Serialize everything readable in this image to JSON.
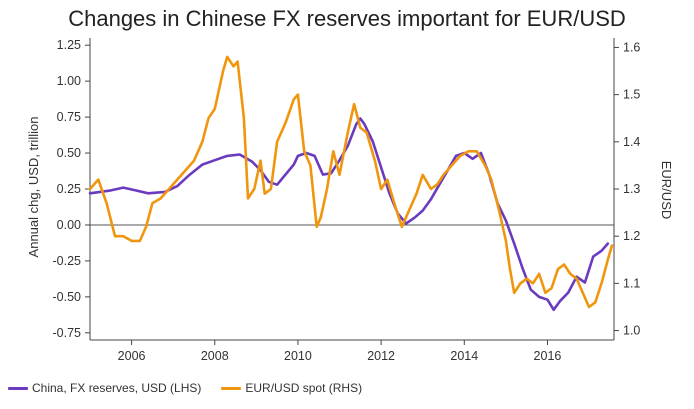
{
  "chart_data": {
    "type": "line",
    "title": "Changes in Chinese FX reserves important for EUR/USD",
    "ylabel_left": "Annual chg, USD, trillion",
    "ylabel_right": "EUR/USD",
    "xlim": [
      2005,
      2017.6
    ],
    "ylim_left": [
      -0.8,
      1.3
    ],
    "ylim_right": [
      0.98,
      1.62
    ],
    "x_ticks": [
      "2006",
      "2008",
      "2010",
      "2012",
      "2014",
      "2016"
    ],
    "y_ticks_left": [
      "1.25",
      "1.00",
      "0.75",
      "0.50",
      "0.25",
      "0.00",
      "-0.25",
      "-0.50",
      "-0.75"
    ],
    "y_ticks_right": [
      "1.6",
      "1.5",
      "1.4",
      "1.3",
      "1.2",
      "1.1",
      "1.0"
    ],
    "zero_line": 0,
    "series": [
      {
        "name": "China, FX reserves, USD (LHS)",
        "axis": "left",
        "color": "#6a3bbf",
        "points": [
          [
            2005.0,
            0.22
          ],
          [
            2005.5,
            0.24
          ],
          [
            2005.8,
            0.26
          ],
          [
            2006.1,
            0.24
          ],
          [
            2006.4,
            0.22
          ],
          [
            2006.8,
            0.23
          ],
          [
            2007.1,
            0.27
          ],
          [
            2007.4,
            0.35
          ],
          [
            2007.7,
            0.42
          ],
          [
            2008.0,
            0.45
          ],
          [
            2008.3,
            0.48
          ],
          [
            2008.6,
            0.49
          ],
          [
            2008.9,
            0.44
          ],
          [
            2009.1,
            0.38
          ],
          [
            2009.3,
            0.3
          ],
          [
            2009.5,
            0.28
          ],
          [
            2009.7,
            0.35
          ],
          [
            2009.9,
            0.42
          ],
          [
            2010.0,
            0.48
          ],
          [
            2010.2,
            0.5
          ],
          [
            2010.4,
            0.48
          ],
          [
            2010.6,
            0.35
          ],
          [
            2010.8,
            0.36
          ],
          [
            2011.0,
            0.45
          ],
          [
            2011.2,
            0.55
          ],
          [
            2011.4,
            0.7
          ],
          [
            2011.5,
            0.74
          ],
          [
            2011.6,
            0.7
          ],
          [
            2011.8,
            0.58
          ],
          [
            2012.0,
            0.4
          ],
          [
            2012.2,
            0.22
          ],
          [
            2012.4,
            0.08
          ],
          [
            2012.6,
            0.01
          ],
          [
            2012.8,
            0.05
          ],
          [
            2013.0,
            0.1
          ],
          [
            2013.2,
            0.18
          ],
          [
            2013.4,
            0.28
          ],
          [
            2013.6,
            0.38
          ],
          [
            2013.8,
            0.48
          ],
          [
            2014.0,
            0.5
          ],
          [
            2014.2,
            0.46
          ],
          [
            2014.4,
            0.5
          ],
          [
            2014.6,
            0.35
          ],
          [
            2014.8,
            0.15
          ],
          [
            2015.0,
            0.03
          ],
          [
            2015.2,
            -0.13
          ],
          [
            2015.4,
            -0.3
          ],
          [
            2015.6,
            -0.45
          ],
          [
            2015.8,
            -0.5
          ],
          [
            2016.0,
            -0.52
          ],
          [
            2016.15,
            -0.59
          ],
          [
            2016.3,
            -0.53
          ],
          [
            2016.5,
            -0.47
          ],
          [
            2016.7,
            -0.36
          ],
          [
            2016.9,
            -0.4
          ],
          [
            2017.1,
            -0.22
          ],
          [
            2017.3,
            -0.18
          ],
          [
            2017.45,
            -0.13
          ]
        ]
      },
      {
        "name": "EUR/USD spot (RHS)",
        "axis": "right",
        "color": "#f0960e",
        "points": [
          [
            2005.0,
            1.3
          ],
          [
            2005.2,
            1.32
          ],
          [
            2005.4,
            1.27
          ],
          [
            2005.6,
            1.2
          ],
          [
            2005.8,
            1.2
          ],
          [
            2006.0,
            1.19
          ],
          [
            2006.2,
            1.19
          ],
          [
            2006.35,
            1.22
          ],
          [
            2006.5,
            1.27
          ],
          [
            2006.7,
            1.28
          ],
          [
            2006.9,
            1.3
          ],
          [
            2007.1,
            1.32
          ],
          [
            2007.3,
            1.34
          ],
          [
            2007.5,
            1.36
          ],
          [
            2007.7,
            1.4
          ],
          [
            2007.85,
            1.45
          ],
          [
            2008.0,
            1.47
          ],
          [
            2008.2,
            1.55
          ],
          [
            2008.3,
            1.58
          ],
          [
            2008.45,
            1.56
          ],
          [
            2008.55,
            1.57
          ],
          [
            2008.7,
            1.45
          ],
          [
            2008.8,
            1.28
          ],
          [
            2008.95,
            1.3
          ],
          [
            2009.1,
            1.36
          ],
          [
            2009.2,
            1.29
          ],
          [
            2009.35,
            1.3
          ],
          [
            2009.5,
            1.4
          ],
          [
            2009.7,
            1.44
          ],
          [
            2009.9,
            1.49
          ],
          [
            2010.0,
            1.5
          ],
          [
            2010.15,
            1.38
          ],
          [
            2010.3,
            1.35
          ],
          [
            2010.45,
            1.22
          ],
          [
            2010.55,
            1.24
          ],
          [
            2010.7,
            1.3
          ],
          [
            2010.85,
            1.38
          ],
          [
            2011.0,
            1.33
          ],
          [
            2011.2,
            1.42
          ],
          [
            2011.35,
            1.48
          ],
          [
            2011.5,
            1.43
          ],
          [
            2011.65,
            1.42
          ],
          [
            2011.85,
            1.36
          ],
          [
            2012.0,
            1.3
          ],
          [
            2012.15,
            1.32
          ],
          [
            2012.35,
            1.26
          ],
          [
            2012.5,
            1.22
          ],
          [
            2012.65,
            1.25
          ],
          [
            2012.85,
            1.29
          ],
          [
            2013.0,
            1.33
          ],
          [
            2013.2,
            1.3
          ],
          [
            2013.35,
            1.31
          ],
          [
            2013.5,
            1.33
          ],
          [
            2013.7,
            1.35
          ],
          [
            2013.9,
            1.37
          ],
          [
            2014.1,
            1.38
          ],
          [
            2014.3,
            1.38
          ],
          [
            2014.5,
            1.35
          ],
          [
            2014.65,
            1.32
          ],
          [
            2014.85,
            1.25
          ],
          [
            2015.0,
            1.19
          ],
          [
            2015.1,
            1.13
          ],
          [
            2015.2,
            1.08
          ],
          [
            2015.35,
            1.1
          ],
          [
            2015.5,
            1.11
          ],
          [
            2015.65,
            1.1
          ],
          [
            2015.8,
            1.12
          ],
          [
            2015.95,
            1.08
          ],
          [
            2016.1,
            1.09
          ],
          [
            2016.25,
            1.13
          ],
          [
            2016.4,
            1.14
          ],
          [
            2016.55,
            1.12
          ],
          [
            2016.7,
            1.11
          ],
          [
            2016.85,
            1.08
          ],
          [
            2017.0,
            1.05
          ],
          [
            2017.15,
            1.06
          ],
          [
            2017.3,
            1.1
          ],
          [
            2017.45,
            1.15
          ],
          [
            2017.55,
            1.18
          ]
        ]
      }
    ],
    "legend": [
      {
        "label": "China, FX reserves, USD (LHS)",
        "color": "#6a3bbf"
      },
      {
        "label": "EUR/USD spot (RHS)",
        "color": "#f0960e"
      }
    ]
  }
}
